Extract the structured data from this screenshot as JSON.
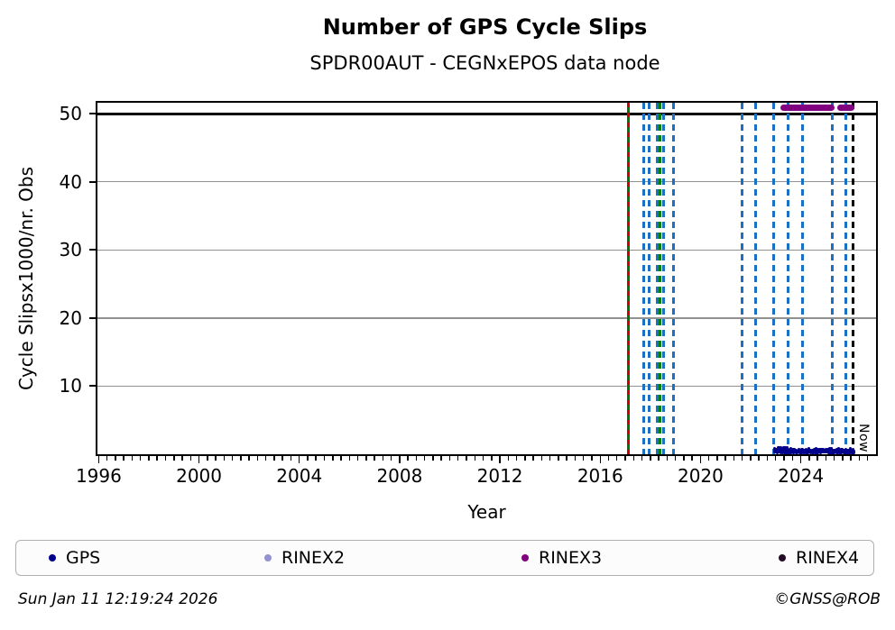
{
  "footer": {
    "timestamp": "Sun Jan 11 12:19:24 2026",
    "copyright": "©GNSS@ROB"
  },
  "chart_data": {
    "type": "scatter",
    "title": "Number of GPS Cycle Slips",
    "subtitle": "SPDR00AUT - CEGNxEPOS data node",
    "xlabel": "Year",
    "ylabel": "Cycle Slipsx1000/nr. Obs",
    "xlim": [
      1995.95,
      2027.0
    ],
    "ylim": [
      0,
      51.6
    ],
    "xticks_major": [
      1996,
      2000,
      2004,
      2008,
      2012,
      2016,
      2020,
      2024
    ],
    "xtick_minor_step": 0.3333,
    "yticks": [
      10,
      20,
      30,
      40,
      50
    ],
    "grid": "horizontal-only",
    "background": "#ffffff",
    "threshold_line": {
      "y": 50,
      "color": "#000000"
    },
    "now_line": {
      "x": 2026.1,
      "label": "Now",
      "color": "#000000",
      "style": "dashed"
    },
    "event_lines": [
      {
        "x": 2017.11,
        "style": "red-green-dashed",
        "colors": [
          "#cc0000",
          "#007700"
        ]
      },
      {
        "x": 2017.72,
        "style": "dashed",
        "color": "#1b6fc5"
      },
      {
        "x": 2017.94,
        "style": "dashed",
        "color": "#1b6fc5"
      },
      {
        "x": 2018.26,
        "style": "dashed",
        "color": "#1b6fc5"
      },
      {
        "x": 2018.37,
        "style": "dashed",
        "color": "#008000"
      },
      {
        "x": 2018.51,
        "style": "dashed",
        "color": "#1b6fc5"
      },
      {
        "x": 2018.94,
        "style": "dashed",
        "color": "#1b6fc5"
      },
      {
        "x": 2021.64,
        "style": "dashed",
        "color": "#1b6fc5"
      },
      {
        "x": 2022.18,
        "style": "dashed",
        "color": "#1b6fc5"
      },
      {
        "x": 2022.93,
        "style": "dashed",
        "color": "#1b6fc5"
      },
      {
        "x": 2023.51,
        "style": "dashed",
        "color": "#1b6fc5"
      },
      {
        "x": 2024.05,
        "style": "dashed",
        "color": "#1b6fc5"
      },
      {
        "x": 2025.24,
        "style": "dashed",
        "color": "#1b6fc5"
      },
      {
        "x": 2025.78,
        "style": "dashed",
        "color": "#1b6fc5"
      }
    ],
    "series": [
      {
        "name": "GPS",
        "color": "#00008b",
        "type": "scatter-band",
        "x_start": 2022.97,
        "x_end": 2026.15,
        "y_min": 0.2,
        "y_max": 1.35,
        "y_typical": 0.55,
        "note": "dense daily points hugging zero"
      },
      {
        "name": "RINEX2",
        "color": "#9393d2",
        "type": "scatter",
        "points": []
      },
      {
        "name": "RINEX3",
        "color": "#800080",
        "type": "segments",
        "y": 50.87,
        "segments": [
          [
            2023.17,
            2025.33
          ],
          [
            2025.45,
            2026.12
          ]
        ]
      },
      {
        "name": "RINEX4",
        "color": "#250a25",
        "type": "scatter",
        "points": []
      }
    ],
    "legend": {
      "position": "bottom",
      "entries": [
        {
          "label": "GPS",
          "color": "#00008b"
        },
        {
          "label": "RINEX2",
          "color": "#9393d2"
        },
        {
          "label": "RINEX3",
          "color": "#800080"
        },
        {
          "label": "RINEX4",
          "color": "#250a25"
        }
      ]
    }
  }
}
